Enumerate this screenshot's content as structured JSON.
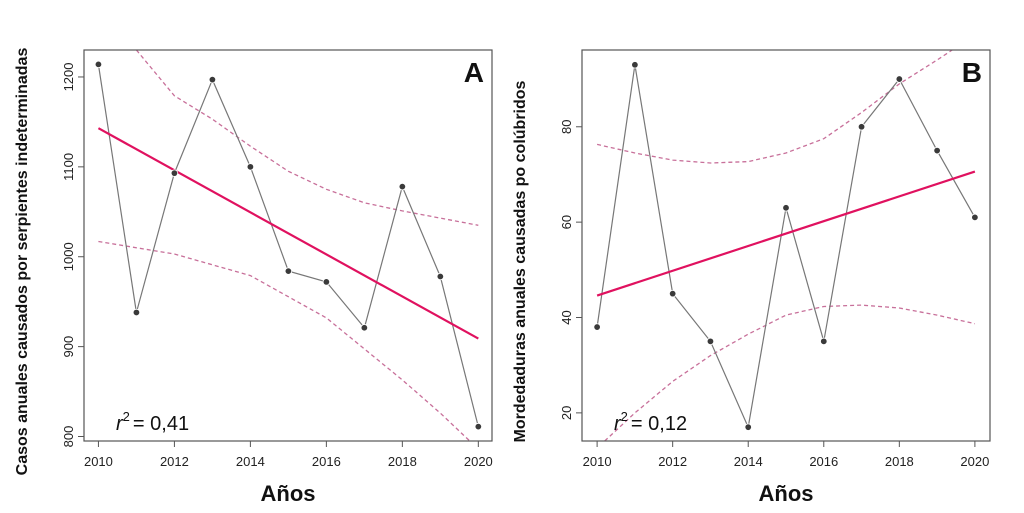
{
  "chart_data": [
    {
      "type": "line",
      "panel_label": "A",
      "xlabel": "Años",
      "ylabel": "Casos anuales causados por serpientes indeterminadas",
      "x": [
        2010,
        2011,
        2012,
        2013,
        2014,
        2015,
        2016,
        2017,
        2018,
        2019,
        2020
      ],
      "values": [
        1214,
        938,
        1093,
        1197,
        1100,
        984,
        972,
        921,
        1078,
        978,
        811
      ],
      "regression": {
        "x": [
          2010,
          2020
        ],
        "y": [
          1143,
          909
        ]
      },
      "ci_upper": {
        "x": [
          2011,
          2012,
          2013,
          2014,
          2015,
          2016,
          2017,
          2018,
          2019,
          2020
        ],
        "y": [
          1230,
          1179,
          1153,
          1123,
          1095,
          1075,
          1060,
          1051,
          1043,
          1035
        ]
      },
      "ci_lower": {
        "x": [
          2010,
          2012,
          2014,
          2016,
          2018,
          2019,
          2020
        ],
        "y": [
          1017,
          1003,
          979,
          932,
          863,
          826,
          786
        ]
      },
      "annotation": {
        "r2_prefix": "r",
        "r2_exp": "2",
        "r2_value": "= 0,41"
      },
      "xticks": [
        "2010",
        "2012",
        "2014",
        "2016",
        "2018",
        "2020"
      ],
      "yticks": [
        "800",
        "900",
        "1000",
        "1100",
        "1200"
      ],
      "xlim": [
        2009.62,
        2020.36
      ],
      "ylim": [
        795,
        1230
      ]
    },
    {
      "type": "line",
      "panel_label": "B",
      "xlabel": "Años",
      "ylabel": "Mordedaduras anuales causadas po colúbridos",
      "x": [
        2010,
        2011,
        2012,
        2013,
        2014,
        2015,
        2016,
        2017,
        2018,
        2019,
        2020
      ],
      "values": [
        38,
        93,
        45,
        35,
        17,
        63,
        35,
        80,
        90,
        75,
        61
      ],
      "regression": {
        "x": [
          2010,
          2020
        ],
        "y": [
          44.6,
          70.6
        ]
      },
      "ci_upper": {
        "x": [
          2010,
          2011,
          2012,
          2013,
          2014,
          2015,
          2016,
          2017,
          2018,
          2019,
          2019.4
        ],
        "y": [
          76.3,
          74.5,
          73,
          72.4,
          72.7,
          74.5,
          77.5,
          83,
          89,
          94,
          96.1
        ]
      },
      "ci_lower": {
        "x": [
          2010.2,
          2011,
          2012,
          2013,
          2014,
          2015,
          2016,
          2017,
          2018,
          2019,
          2020
        ],
        "y": [
          14.1,
          20,
          26.6,
          32,
          36.5,
          40.5,
          42.3,
          42.6,
          42,
          40.5,
          38.7
        ]
      },
      "annotation": {
        "r2_prefix": "r",
        "r2_exp": "2",
        "r2_value": "= 0,12"
      },
      "xticks": [
        "2010",
        "2012",
        "2014",
        "2016",
        "2018",
        "2020"
      ],
      "yticks": [
        "20",
        "40",
        "60",
        "80"
      ],
      "xlim": [
        2009.6,
        2020.4
      ],
      "ylim": [
        14.1,
        96.1
      ]
    }
  ],
  "colors": {
    "points": "#3a3a3a",
    "connect": "#777777",
    "regression": "#e0115f",
    "ci": "#c8709a"
  }
}
